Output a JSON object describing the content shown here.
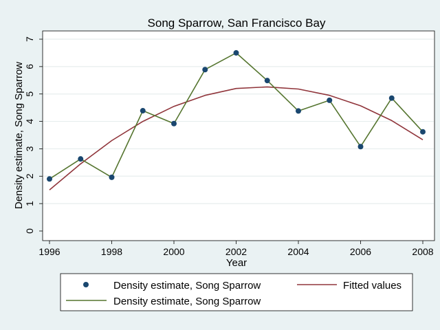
{
  "chart_data": {
    "type": "line",
    "title": "Song Sparrow, San Francisco Bay",
    "xlabel": "Year",
    "ylabel": "Density estimate, Song Sparrow",
    "xlim": [
      1996,
      2008
    ],
    "ylim": [
      0,
      7
    ],
    "xticks": [
      1996,
      1998,
      2000,
      2002,
      2004,
      2006,
      2008
    ],
    "yticks": [
      0,
      1,
      2,
      3,
      4,
      5,
      6,
      7
    ],
    "grid": true,
    "legend_position": "bottom",
    "series": [
      {
        "name": "Density estimate, Song Sparrow",
        "kind": "scatter",
        "color": "#1a476f",
        "x": [
          1996,
          1997,
          1998,
          1999,
          2000,
          2001,
          2002,
          2003,
          2004,
          2005,
          2006,
          2007,
          2008
        ],
        "y": [
          1.9,
          2.63,
          1.96,
          4.39,
          3.92,
          5.89,
          6.5,
          5.49,
          4.38,
          4.77,
          3.08,
          4.85,
          3.62
        ]
      },
      {
        "name": "Fitted values",
        "kind": "line",
        "color": "#90353b",
        "x": [
          1996,
          1997,
          1998,
          1999,
          2000,
          2001,
          2002,
          2003,
          2004,
          2005,
          2006,
          2007,
          2008
        ],
        "y": [
          1.5,
          2.45,
          3.3,
          4.0,
          4.55,
          4.95,
          5.2,
          5.26,
          5.18,
          4.95,
          4.57,
          4.03,
          3.33
        ]
      },
      {
        "name": "Density estimate, Song Sparrow",
        "kind": "line",
        "color": "#55752f",
        "x": [
          1996,
          1997,
          1998,
          1999,
          2000,
          2001,
          2002,
          2003,
          2004,
          2005,
          2006,
          2007,
          2008
        ],
        "y": [
          1.9,
          2.63,
          1.96,
          4.39,
          3.92,
          5.89,
          6.5,
          5.49,
          4.38,
          4.77,
          3.08,
          4.85,
          3.62
        ]
      }
    ]
  }
}
